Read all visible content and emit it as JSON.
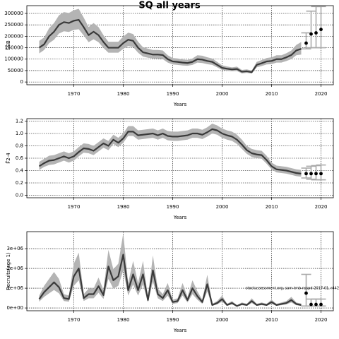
{
  "chart_data": [
    {
      "type": "band-line",
      "title": "SQ all years",
      "xlabel": "Years",
      "ylabel": "SSB",
      "xlim": [
        1960.5,
        2022.5
      ],
      "xticks": [
        1970,
        1980,
        1990,
        2000,
        2010,
        2020
      ],
      "ylim": [
        -12000,
        334000
      ],
      "yticks": [
        0,
        50000,
        100000,
        150000,
        200000,
        250000,
        300000
      ],
      "grid": true,
      "color": "#3a3a3a",
      "band_color": "#b4b4b4",
      "x": [
        1963,
        1964,
        1965,
        1966,
        1967,
        1968,
        1969,
        1970,
        1971,
        1972,
        1973,
        1974,
        1975,
        1976,
        1977,
        1978,
        1979,
        1980,
        1981,
        1982,
        1983,
        1984,
        1985,
        1986,
        1987,
        1988,
        1989,
        1990,
        1991,
        1992,
        1993,
        1994,
        1995,
        1996,
        1997,
        1998,
        1999,
        2000,
        2001,
        2002,
        2003,
        2004,
        2005,
        2006,
        2007,
        2008,
        2009,
        2010,
        2011,
        2012,
        2013,
        2014,
        2015,
        2016
      ],
      "values": [
        150000,
        165000,
        200000,
        220000,
        250000,
        262000,
        258000,
        268000,
        272000,
        240000,
        205000,
        220000,
        205000,
        175000,
        150000,
        150000,
        150000,
        170000,
        185000,
        180000,
        150000,
        130000,
        125000,
        120000,
        120000,
        118000,
        100000,
        90000,
        88000,
        85000,
        83000,
        88000,
        100000,
        98000,
        92000,
        88000,
        75000,
        62000,
        58000,
        55000,
        57000,
        45000,
        47000,
        43000,
        75000,
        82000,
        90000,
        92000,
        100000,
        100000,
        108000,
        118000,
        138000,
        145000
      ],
      "lower": [
        125000,
        140000,
        170000,
        185000,
        212000,
        222000,
        219000,
        228000,
        231000,
        204000,
        174000,
        187000,
        174000,
        149000,
        128000,
        128000,
        128000,
        145000,
        157000,
        153000,
        128000,
        111000,
        106000,
        102000,
        102000,
        100000,
        85000,
        77000,
        75000,
        72000,
        71000,
        75000,
        85000,
        83000,
        78000,
        75000,
        64000,
        53000,
        49000,
        47000,
        48000,
        38000,
        40000,
        37000,
        64000,
        70000,
        77000,
        78000,
        85000,
        85000,
        92000,
        100000,
        117000,
        120000
      ],
      "upper": [
        180000,
        195000,
        235000,
        258000,
        292000,
        306000,
        302000,
        314000,
        320000,
        282000,
        240000,
        258000,
        240000,
        205000,
        176000,
        176000,
        176000,
        199000,
        216000,
        210000,
        176000,
        152000,
        146000,
        140000,
        140000,
        138000,
        117000,
        105000,
        103000,
        99000,
        97000,
        103000,
        117000,
        115000,
        108000,
        103000,
        88000,
        73000,
        68000,
        64000,
        67000,
        53000,
        55000,
        50000,
        88000,
        96000,
        105000,
        108000,
        117000,
        117000,
        126000,
        138000,
        162000,
        175000
      ],
      "forecast": {
        "x": [
          2017,
          2018,
          2019,
          2020
        ],
        "values": [
          170000,
          210000,
          215000,
          230000
        ],
        "low": [
          145000,
          150000,
          150000,
          150000
        ],
        "high": [
          215000,
          310000,
          330000,
          330000
        ],
        "color": "#000000",
        "bar_color": "#aaaaaa"
      }
    },
    {
      "type": "band-line",
      "xlabel": "Years",
      "ylabel": "F̄2-4",
      "xlim": [
        1960.5,
        2022.5
      ],
      "xticks": [
        1970,
        1980,
        1990,
        2000,
        2010,
        2020
      ],
      "ylim": [
        -0.04,
        1.24
      ],
      "yticks": [
        {
          "value": 0,
          "label": "0.0"
        },
        0.2,
        0.4,
        0.6,
        0.8,
        {
          "value": 1,
          "label": "1.0"
        },
        1.2
      ],
      "grid": true,
      "color": "#3a3a3a",
      "band_color": "#b4b4b4",
      "x": [
        1963,
        1964,
        1965,
        1966,
        1967,
        1968,
        1969,
        1970,
        1971,
        1972,
        1973,
        1974,
        1975,
        1976,
        1977,
        1978,
        1979,
        1980,
        1981,
        1982,
        1983,
        1984,
        1985,
        1986,
        1987,
        1988,
        1989,
        1990,
        1991,
        1992,
        1993,
        1994,
        1995,
        1996,
        1997,
        1998,
        1999,
        2000,
        2001,
        2002,
        2003,
        2004,
        2005,
        2006,
        2007,
        2008,
        2009,
        2010,
        2011,
        2012,
        2013,
        2014,
        2015,
        2016
      ],
      "values": [
        0.47,
        0.52,
        0.56,
        0.57,
        0.6,
        0.63,
        0.6,
        0.63,
        0.7,
        0.76,
        0.75,
        0.72,
        0.78,
        0.84,
        0.8,
        0.9,
        0.85,
        0.92,
        1.03,
        1.03,
        0.97,
        0.98,
        0.99,
        1.0,
        0.97,
        1.0,
        0.96,
        0.95,
        0.95,
        0.96,
        0.97,
        1.0,
        1.0,
        0.98,
        1.02,
        1.07,
        1.05,
        1.0,
        0.97,
        0.95,
        0.9,
        0.82,
        0.73,
        0.68,
        0.66,
        0.65,
        0.57,
        0.47,
        0.42,
        0.41,
        0.4,
        0.38,
        0.36,
        0.35
      ],
      "lower": [
        0.41,
        0.46,
        0.49,
        0.5,
        0.53,
        0.56,
        0.53,
        0.56,
        0.63,
        0.69,
        0.68,
        0.65,
        0.71,
        0.77,
        0.73,
        0.83,
        0.78,
        0.85,
        0.96,
        0.96,
        0.9,
        0.91,
        0.92,
        0.93,
        0.9,
        0.93,
        0.89,
        0.88,
        0.88,
        0.89,
        0.9,
        0.93,
        0.93,
        0.91,
        0.95,
        1.0,
        0.98,
        0.93,
        0.9,
        0.88,
        0.83,
        0.75,
        0.67,
        0.62,
        0.6,
        0.59,
        0.51,
        0.42,
        0.37,
        0.36,
        0.35,
        0.33,
        0.31,
        0.3
      ],
      "upper": [
        0.54,
        0.59,
        0.64,
        0.65,
        0.68,
        0.71,
        0.68,
        0.71,
        0.78,
        0.84,
        0.83,
        0.8,
        0.86,
        0.92,
        0.88,
        0.98,
        0.93,
        1.0,
        1.12,
        1.12,
        1.05,
        1.06,
        1.07,
        1.08,
        1.05,
        1.08,
        1.04,
        1.03,
        1.03,
        1.04,
        1.05,
        1.08,
        1.08,
        1.06,
        1.1,
        1.16,
        1.13,
        1.08,
        1.05,
        1.03,
        0.98,
        0.9,
        0.8,
        0.75,
        0.73,
        0.72,
        0.64,
        0.53,
        0.48,
        0.47,
        0.46,
        0.44,
        0.42,
        0.41
      ],
      "forecast": {
        "x": [
          2017,
          2018,
          2019,
          2020
        ],
        "values": [
          0.35,
          0.35,
          0.35,
          0.35
        ],
        "low": [
          0.28,
          0.26,
          0.25,
          0.25
        ],
        "high": [
          0.44,
          0.47,
          0.48,
          0.49
        ],
        "color": "#000000",
        "bar_color": "#aaaaaa"
      }
    },
    {
      "type": "band-line",
      "xlabel": "Years",
      "ylabel": "Recruits(age 1)",
      "annotation": "stockassessment.org, sam-tmb-nsspd-2017-01, r442",
      "xlim": [
        1960.5,
        2022.5
      ],
      "xticks": [
        1970,
        1980,
        1990,
        2000,
        2010,
        2020
      ],
      "ylim": [
        -140000,
        3860000
      ],
      "yticks": [
        {
          "value": 0,
          "label": "0e+00"
        },
        {
          "value": 1000000,
          "label": "1e+06"
        },
        {
          "value": 2000000,
          "label": "2e+06"
        },
        {
          "value": 3000000,
          "label": "3e+06"
        }
      ],
      "grid": true,
      "color": "#3a3a3a",
      "band_color": "#b4b4b4",
      "x": [
        1963,
        1964,
        1965,
        1966,
        1967,
        1968,
        1969,
        1970,
        1971,
        1972,
        1973,
        1974,
        1975,
        1976,
        1977,
        1978,
        1979,
        1980,
        1981,
        1982,
        1983,
        1984,
        1985,
        1986,
        1987,
        1988,
        1989,
        1990,
        1991,
        1992,
        1993,
        1994,
        1995,
        1996,
        1997,
        1998,
        1999,
        2000,
        2001,
        2002,
        2003,
        2004,
        2005,
        2006,
        2007,
        2008,
        2009,
        2010,
        2011,
        2012,
        2013,
        2014,
        2015,
        2016
      ],
      "values": [
        450000,
        800000,
        1050000,
        1300000,
        1050000,
        500000,
        450000,
        1600000,
        2000000,
        500000,
        700000,
        700000,
        1100000,
        650000,
        2100000,
        1400000,
        1600000,
        2700000,
        900000,
        1700000,
        900000,
        1700000,
        400000,
        1900000,
        700000,
        500000,
        900000,
        300000,
        350000,
        900000,
        400000,
        1000000,
        600000,
        300000,
        1200000,
        150000,
        250000,
        450000,
        150000,
        250000,
        100000,
        200000,
        150000,
        350000,
        150000,
        200000,
        150000,
        300000,
        150000,
        200000,
        250000,
        400000,
        200000,
        150000
      ],
      "lower": [
        320000,
        560000,
        740000,
        910000,
        740000,
        350000,
        320000,
        1120000,
        1400000,
        350000,
        490000,
        490000,
        770000,
        460000,
        1470000,
        980000,
        1120000,
        1890000,
        630000,
        1190000,
        630000,
        1190000,
        280000,
        1330000,
        490000,
        350000,
        630000,
        210000,
        250000,
        630000,
        280000,
        700000,
        420000,
        210000,
        840000,
        110000,
        180000,
        320000,
        110000,
        180000,
        70000,
        140000,
        110000,
        250000,
        110000,
        140000,
        110000,
        210000,
        110000,
        140000,
        180000,
        280000,
        140000,
        100000
      ],
      "upper": [
        630000,
        1120000,
        1470000,
        1820000,
        1470000,
        700000,
        630000,
        2240000,
        2800000,
        700000,
        980000,
        980000,
        1540000,
        910000,
        2940000,
        1960000,
        2240000,
        3780000,
        1260000,
        2380000,
        1260000,
        2380000,
        560000,
        2660000,
        980000,
        700000,
        1260000,
        420000,
        490000,
        1260000,
        560000,
        1400000,
        840000,
        420000,
        1680000,
        210000,
        350000,
        630000,
        210000,
        350000,
        140000,
        280000,
        210000,
        490000,
        210000,
        280000,
        210000,
        420000,
        210000,
        280000,
        350000,
        560000,
        280000,
        220000
      ],
      "forecast": {
        "x": [
          2017,
          2018,
          2019,
          2020
        ],
        "values": [
          750000,
          180000,
          180000,
          180000
        ],
        "low": [
          100000,
          100000,
          100000,
          100000
        ],
        "high": [
          1700000,
          450000,
          450000,
          450000
        ],
        "color": "#000000",
        "bar_color": "#aaaaaa"
      }
    }
  ]
}
